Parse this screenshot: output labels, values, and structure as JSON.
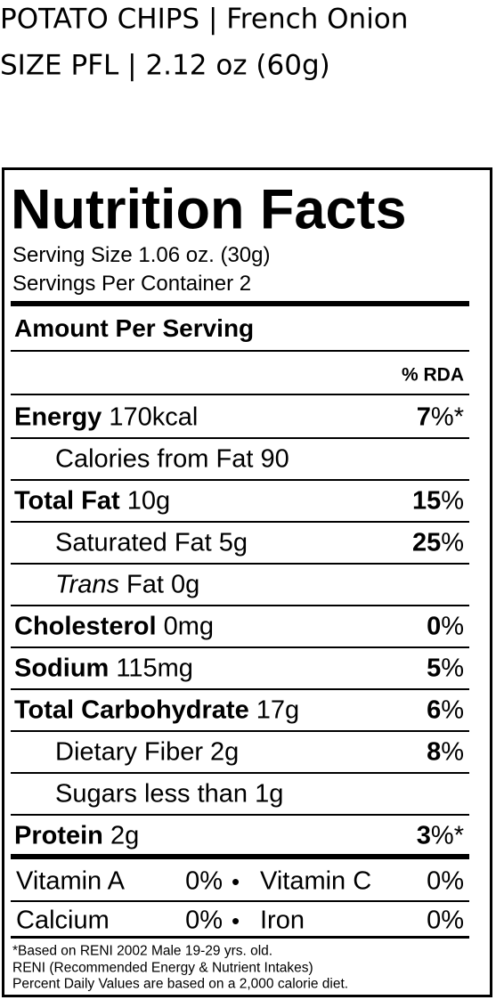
{
  "header": {
    "line1": "POTATO CHIPS | French Onion",
    "line2": "SIZE PFL | 2.12 oz (60g)"
  },
  "label": {
    "title": "Nutrition Facts",
    "serving_size": "Serving Size 1.06 oz. (30g)",
    "servings": "Servings Per Container 2",
    "amount_heading": "Amount Per Serving",
    "rda_heading": "% RDA",
    "rows": [
      {
        "label": "Energy",
        "amount": "170kcal",
        "percent": "7",
        "unit": "%*",
        "bold": true
      },
      {
        "label": "Calories from Fat 90",
        "indent": true
      },
      {
        "label": "Total Fat",
        "amount": "10g",
        "percent": "15",
        "unit": "%",
        "bold": true
      },
      {
        "label": "Saturated Fat 5g",
        "percent": "25",
        "unit": "%",
        "indent": true
      },
      {
        "italic": "Trans",
        "label": "Fat 0g",
        "indent": true
      },
      {
        "label": "Cholesterol",
        "amount": "0mg",
        "percent": "0",
        "unit": "%",
        "bold": true
      },
      {
        "label": "Sodium",
        "amount": "115mg",
        "percent": "5",
        "unit": "%",
        "bold": true
      },
      {
        "label": "Total Carbohydrate",
        "amount": "17g",
        "percent": "6",
        "unit": "%",
        "bold": true
      },
      {
        "label": "Dietary Fiber 2g",
        "percent": "8",
        "unit": "%",
        "indent": true
      },
      {
        "label": "Sugars less than 1g",
        "indent": true
      },
      {
        "label": "Protein",
        "amount": "2g",
        "percent": "3",
        "unit": "%*",
        "bold": true
      }
    ],
    "vitamins": [
      {
        "name1": "Vitamin A",
        "value1": "0%",
        "separator": "•",
        "name2": "Vitamin C",
        "value2": "0%"
      },
      {
        "name1": "Calcium",
        "value1": "0%",
        "separator": "•",
        "name2": "Iron",
        "value2": "0%"
      }
    ],
    "footnotes": [
      "*Based on RENI 2002 Male 19-29 yrs. old.",
      "RENI (Recommended Energy & Nutrient Intakes)",
      "Percent Daily Values are based on a 2,000 calorie diet."
    ]
  }
}
